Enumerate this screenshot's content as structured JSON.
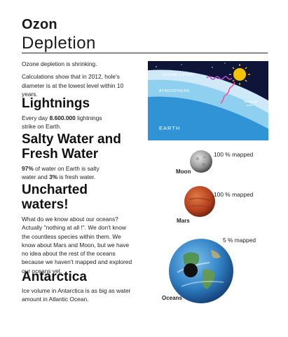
{
  "title": {
    "line1": "Ozon",
    "line2": "Depletion"
  },
  "ozone": {
    "p1": "Ozone depletion is shrinking.",
    "p2_line1": "Calculations show that in 2012, hole's",
    "p2_line2": "diameter is at the lowest level within 10",
    "p2_line3": "years."
  },
  "illustration": {
    "ozone_layer": "OZONE LAYER",
    "atmosphere": "ATMOSPHERE",
    "earth": "EARTH",
    "radiation_label": "ULTRAVIOLET RAYS",
    "ozone_label_line1": "ozone hole",
    "ozone_label_line2": "circle"
  },
  "lightnings": {
    "heading": "Lightnings",
    "line1_pre": "Every day ",
    "line1_bold": "8.600.000",
    "line1_post": " lightnings",
    "line2": "strike on Earth."
  },
  "water": {
    "heading_line1": "Salty Water and",
    "heading_line2": "Fresh Water",
    "l1_bold": "97%",
    "l1_post": " of water on Earth is salty",
    "l2_pre": "water and ",
    "l2_bold": "3%",
    "l2_post": " is fresh water."
  },
  "uncharted": {
    "heading_line1": "Uncharted",
    "heading_line2": "waters!",
    "lines": [
      "What do we know about our oceans?",
      "Actually \"nothing at all !\". We don't know",
      "the countless species within them. We",
      "know about Mars and Moon, but we have",
      "no idea about the rest of the oceans",
      "because we haven't mapped and explored",
      "our oceans yet."
    ]
  },
  "antarctica": {
    "heading": "Antarctica",
    "line1": "Ice volume in Antarctica is as big as water",
    "line2": "amount in Atlantic Ocean."
  },
  "planets": {
    "moon": {
      "name": "Moon",
      "mapped": "100 % mapped",
      "mapped_fraction": 1.0
    },
    "mars": {
      "name": "Mars",
      "mapped": "100 % mapped",
      "mapped_fraction": 1.0
    },
    "oceans": {
      "name": "Oceans",
      "mapped": "5 % mapped",
      "mapped_fraction": 0.05
    }
  },
  "colors": {
    "space": "#0e1538",
    "atmosphere": "#8fd0f0",
    "earth": "#2f93d6",
    "ozone": "#cfe9f8",
    "sun": "#f5c400",
    "uv": "#ff4a8a",
    "mars": "#b5411f",
    "moon": "#9a9a9a"
  }
}
